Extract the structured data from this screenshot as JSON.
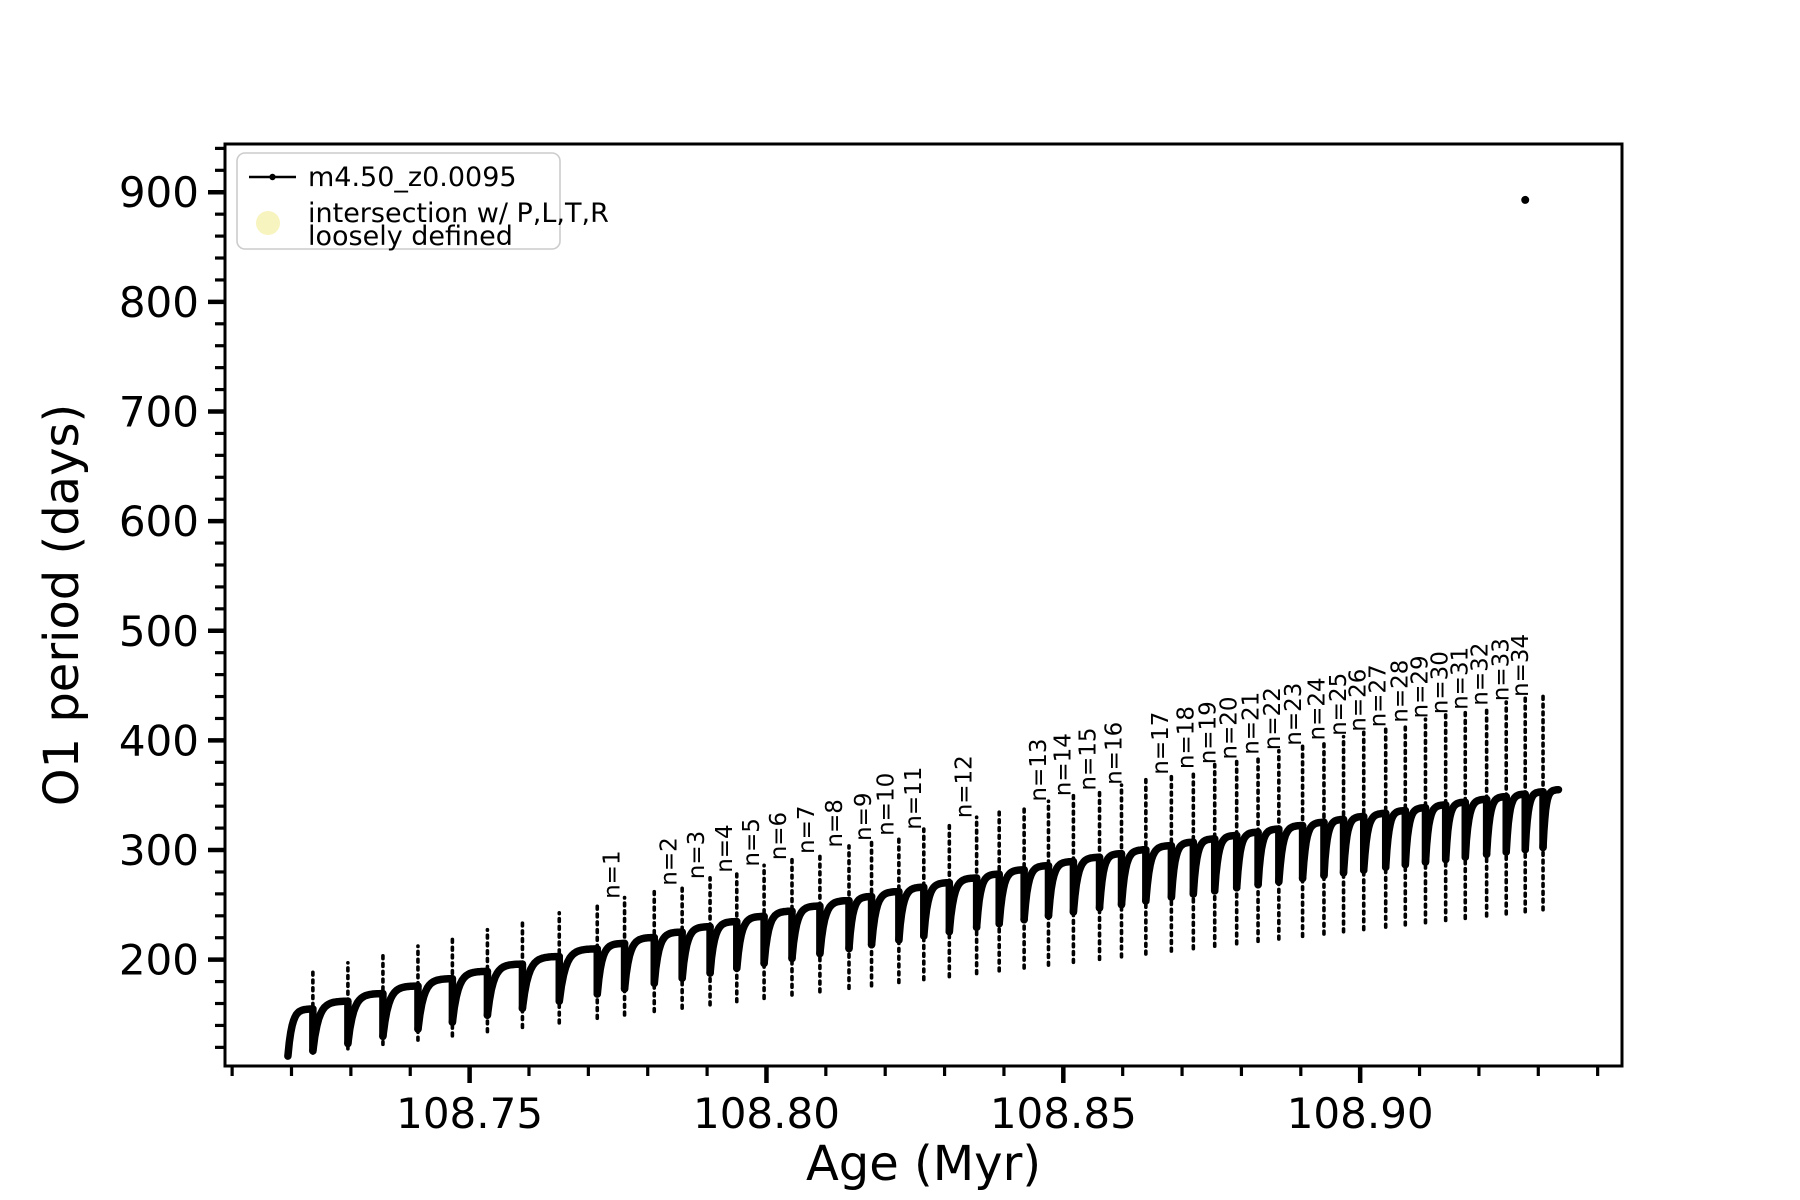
{
  "figure": {
    "background": "#ffffff",
    "series_color": "#000000"
  },
  "legend": {
    "entries": [
      {
        "label": "m4.50_z0.0095",
        "marker": "line-with-dot",
        "color": "#000000"
      },
      {
        "label_line1": "intersection w/ P,L,T,R",
        "label_line2": "loosely defined",
        "marker": "filled-circle",
        "color": "#f7f4bf"
      }
    ],
    "border_color": "#cccccc",
    "position": "upper-left"
  },
  "chart_data": {
    "type": "scatter",
    "title": "",
    "xlabel": "Age (Myr)",
    "ylabel": "O1 period (days)",
    "xlim": [
      108.7088,
      108.9441
    ],
    "ylim": [
      103,
      944
    ],
    "grid": false,
    "x_major_ticks": [
      108.75,
      108.8,
      108.85,
      108.9
    ],
    "x_major_tick_labels": [
      "108.75",
      "108.80",
      "108.85",
      "108.90"
    ],
    "x_minor_tick_step": 0.01,
    "y_major_ticks": [
      200,
      300,
      400,
      500,
      600,
      700,
      800,
      900
    ],
    "y_major_tick_labels": [
      "200",
      "300",
      "400",
      "500",
      "600",
      "700",
      "800",
      "900"
    ],
    "y_minor_tick_step": 20,
    "series_name": "m4.50_z0.0095",
    "data_start_age": 108.7194,
    "data_end_age": 108.9334,
    "envelope_model": {
      "description": "scallop-shaped oscillation track; values in days as function of t=(age-108.7194)/0.214",
      "top_poly": [
        150,
        259,
        -54
      ],
      "start_depth_poly": [
        38,
        13,
        0
      ],
      "tail_depth_poly": [
        38,
        115,
        -45
      ],
      "spike_ext_poly": [
        34,
        20,
        36
      ],
      "top_start_days": 150,
      "top_end_days": 355,
      "dip_min_start_days": 112,
      "dip_min_end_days": 247,
      "spike_top_start_days": 185,
      "spike_top_end_days": 445
    },
    "spikes": [
      {
        "age": 108.7236,
        "n": null
      },
      {
        "age": 108.7295,
        "n": null
      },
      {
        "age": 108.7354,
        "n": null
      },
      {
        "age": 108.7413,
        "n": null
      },
      {
        "age": 108.7471,
        "n": null
      },
      {
        "age": 108.753,
        "n": null
      },
      {
        "age": 108.7589,
        "n": null
      },
      {
        "age": 108.7651,
        "n": null
      },
      {
        "age": 108.7715,
        "n": 1
      },
      {
        "age": 108.7761,
        "n": null
      },
      {
        "age": 108.7811,
        "n": 2
      },
      {
        "age": 108.7858,
        "n": 3
      },
      {
        "age": 108.7905,
        "n": 4
      },
      {
        "age": 108.795,
        "n": 5
      },
      {
        "age": 108.7996,
        "n": 6
      },
      {
        "age": 108.8043,
        "n": 7
      },
      {
        "age": 108.809,
        "n": 8
      },
      {
        "age": 108.8139,
        "n": 9
      },
      {
        "age": 108.8177,
        "n": 10
      },
      {
        "age": 108.8223,
        "n": 11
      },
      {
        "age": 108.8265,
        "n": null
      },
      {
        "age": 108.8308,
        "n": 12
      },
      {
        "age": 108.8354,
        "n": null
      },
      {
        "age": 108.8392,
        "n": null
      },
      {
        "age": 108.8434,
        "n": 13
      },
      {
        "age": 108.8475,
        "n": 14
      },
      {
        "age": 108.8517,
        "n": 15
      },
      {
        "age": 108.8561,
        "n": 16
      },
      {
        "age": 108.8598,
        "n": null
      },
      {
        "age": 108.8639,
        "n": 17
      },
      {
        "age": 108.8682,
        "n": 18
      },
      {
        "age": 108.8719,
        "n": 19
      },
      {
        "age": 108.8755,
        "n": 20
      },
      {
        "age": 108.8792,
        "n": 21
      },
      {
        "age": 108.8828,
        "n": 22
      },
      {
        "age": 108.8863,
        "n": 23
      },
      {
        "age": 108.8903,
        "n": 24
      },
      {
        "age": 108.8939,
        "n": 25
      },
      {
        "age": 108.8972,
        "n": 26
      },
      {
        "age": 108.9006,
        "n": 27
      },
      {
        "age": 108.9043,
        "n": 28
      },
      {
        "age": 108.9076,
        "n": 29
      },
      {
        "age": 108.911,
        "n": 30
      },
      {
        "age": 108.9144,
        "n": 31
      },
      {
        "age": 108.9177,
        "n": 32
      },
      {
        "age": 108.9213,
        "n": 33
      },
      {
        "age": 108.9246,
        "n": 34
      },
      {
        "age": 108.9278,
        "n": null
      },
      {
        "age": 108.9308,
        "n": null
      }
    ],
    "annotation_prefix": "n=",
    "outlier_point": {
      "age": 108.9278,
      "period_days": 893
    }
  }
}
